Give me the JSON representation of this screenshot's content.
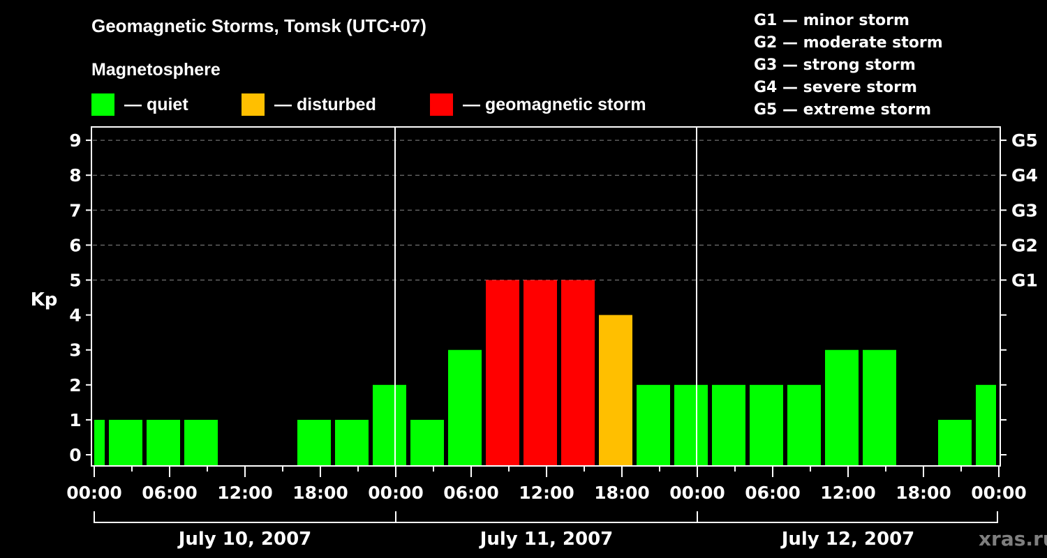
{
  "header": {
    "title": "Geomagnetic Storms, Tomsk (UTC+07)",
    "subtitle": "Magnetosphere"
  },
  "legend": [
    {
      "label": "— quiet",
      "color": "#00ff00"
    },
    {
      "label": "— disturbed",
      "color": "#ffbf00"
    },
    {
      "label": "— geomagnetic storm",
      "color": "#ff0000"
    }
  ],
  "scale": [
    "G1 — minor storm",
    "G2 — moderate storm",
    "G3 — strong storm",
    "G4 — severe storm",
    "G5 — extreme storm"
  ],
  "watermark": "xras.ru",
  "chart_data": {
    "type": "bar",
    "title": "Geomagnetic Storms, Tomsk (UTC+07)",
    "subtitle": "Magnetosphere",
    "xlabel": "",
    "ylabel": "Kp",
    "ylim": [
      0,
      9
    ],
    "yticks": [
      0,
      1,
      2,
      3,
      4,
      5,
      6,
      7,
      8,
      9
    ],
    "y2_ticks": [
      {
        "value": 5,
        "label": "G1"
      },
      {
        "value": 6,
        "label": "G2"
      },
      {
        "value": 7,
        "label": "G3"
      },
      {
        "value": 8,
        "label": "G4"
      },
      {
        "value": 9,
        "label": "G5"
      }
    ],
    "grid": "dashed horizontal at Kp 5-9",
    "xtick_labels": [
      "00:00",
      "06:00",
      "12:00",
      "18:00",
      "00:00",
      "06:00",
      "12:00",
      "18:00",
      "00:00",
      "06:00",
      "12:00",
      "18:00",
      "00:00"
    ],
    "day_labels": [
      "July 10, 2007",
      "July 11, 2007",
      "July 12, 2007"
    ],
    "interval_hours": 3,
    "first_interval_start_local": "July 9, 2007 22:00",
    "categories": [
      "Jul 09 22:00",
      "Jul 10 01:00",
      "Jul 10 04:00",
      "Jul 10 07:00",
      "Jul 10 10:00",
      "Jul 10 13:00",
      "Jul 10 16:00",
      "Jul 10 19:00",
      "Jul 10 22:00",
      "Jul 11 01:00",
      "Jul 11 04:00",
      "Jul 11 07:00",
      "Jul 11 10:00",
      "Jul 11 13:00",
      "Jul 11 16:00",
      "Jul 11 19:00",
      "Jul 11 22:00",
      "Jul 12 01:00",
      "Jul 12 04:00",
      "Jul 12 07:00",
      "Jul 12 10:00",
      "Jul 12 13:00",
      "Jul 12 16:00",
      "Jul 12 19:00",
      "Jul 12 22:00"
    ],
    "values": [
      1,
      1,
      1,
      1,
      0,
      0,
      1,
      1,
      2,
      1,
      3,
      5,
      5,
      5,
      4,
      2,
      2,
      2,
      2,
      2,
      3,
      3,
      0,
      1,
      2
    ],
    "colors_by_level": {
      "quiet": "#00ff00",
      "disturbed": "#ffbf00",
      "storm": "#ff0000"
    },
    "thresholds": {
      "disturbed_min": 4,
      "storm_min": 5
    }
  }
}
